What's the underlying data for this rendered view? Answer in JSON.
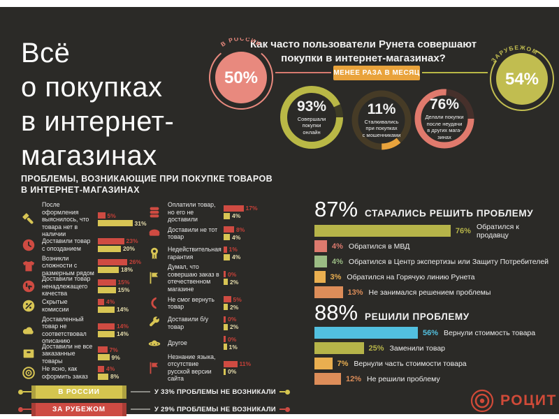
{
  "chart_data": [
    {
      "type": "pie",
      "title": "Как часто пользователи Рунета совершают покупки в интернет-магазинах?",
      "subtitle": "МЕНЕЕ РАЗА В МЕСЯЦ",
      "series": [
        {
          "label": "В РОССИИ",
          "value": 50,
          "color": "#e8897e"
        },
        {
          "label": "ЗАРУБЕЖОМ",
          "value": 54,
          "color": "#c1bd50"
        }
      ]
    },
    {
      "type": "pie",
      "items": [
        {
          "value": 93,
          "label": "Совершали покупки онлайн",
          "color": "#b9b846"
        },
        {
          "value": 11,
          "label": "Сталкивались при покупках с мошенниками",
          "color": "#e9a33c"
        },
        {
          "value": 76,
          "label": "Делали покупки после неудачи в других магазинах",
          "color": "#e07a6d"
        }
      ]
    },
    {
      "type": "bar",
      "title": "ПРОБЛЕМЫ, ВОЗНИКАЮЩИЕ ПРИ ПОКУПКЕ ТОВАРОВ В ИНТЕРНЕТ-МАГАЗИНАХ",
      "categories": [
        "После оформления выяснилось, что товара нет в наличии",
        "Доставили товар с опозданием",
        "Возникли сложности с размерным рядом",
        "Доставили товар ненадлежащего качества",
        "Скрытые комиссии",
        "Доставленный товар не соответствовал описанию",
        "Доставили не все заказанные товары",
        "Не ясно, как оформить заказ",
        "Оплатили товар, но его не доставили",
        "Доставили не тот товар",
        "Недействительная гарантия",
        "Думал, что совершаю заказ в отечественном магазине",
        "Не смог вернуть товар",
        "Доставили б/у товар",
        "Другое",
        "Незнание языка, отсутствие русской версии сайта"
      ],
      "series": [
        {
          "name": "ЗА РУБЕЖОМ",
          "color": "#cf4b42",
          "values": [
            5,
            23,
            26,
            15,
            4,
            14,
            7,
            4,
            17,
            8,
            1,
            0,
            5,
            0,
            0,
            11
          ]
        },
        {
          "name": "В РОССИИ",
          "color": "#d8c554",
          "values": [
            31,
            20,
            18,
            15,
            14,
            14,
            9,
            8,
            4,
            4,
            4,
            2,
            2,
            2,
            1,
            0
          ]
        }
      ]
    },
    {
      "type": "bar",
      "title": "87% СТАРАЛИСЬ РЕШИТЬ ПРОБЛЕМУ",
      "categories": [
        "Обратился к продавцу",
        "Обратился в МВД",
        "Обратился в Центр экспертизы или Защиту Потребителей",
        "Обратился на Горячую линию Рунета",
        "Не занимался решением проблемы"
      ],
      "values": [
        76,
        4,
        4,
        3,
        13
      ]
    },
    {
      "type": "bar",
      "title": "88% РЕШИЛИ ПРОБЛЕМУ",
      "categories": [
        "Вернули стоимость товара",
        "Заменили товар",
        "Вернули часть стоимости товара",
        "Не решили проблему"
      ],
      "values": [
        56,
        25,
        7,
        12
      ]
    },
    {
      "type": "table",
      "rows": [
        [
          "В РОССИИ",
          "У 33% ПРОБЛЕМЫ НЕ ВОЗНИКАЛИ"
        ],
        [
          "ЗА РУБЕЖОМ",
          "У 29% ПРОБЛЕМЫ НЕ ВОЗНИКАЛИ"
        ]
      ]
    }
  ],
  "page": {
    "title": "Всё\nо покупках\nв интернет-\nмагазинах"
  },
  "header": {
    "question": "Как часто пользователи Рунета совершают\nпокупки в интернет-магазинах?",
    "badge": "МЕНЕЕ РАЗА В МЕСЯЦ",
    "russia": {
      "label": "В РОССИИ",
      "value": "50%",
      "color": "#e8897e"
    },
    "abroad": {
      "label": "ЗАРУБЕЖОМ",
      "value": "54%",
      "color": "#c1bd50"
    },
    "donuts": [
      {
        "pct": 93,
        "value": "93%",
        "label": "Совершали\nпокупки\nонлайн",
        "color": "#b9b846",
        "rest": "#3e3c25"
      },
      {
        "pct": 11,
        "value": "11%",
        "label": "Сталкивались\nпри покупках\nс мошенниками",
        "color": "#e9a33c",
        "rest": "#463b26"
      },
      {
        "pct": 76,
        "value": "76%",
        "label": "Делали покупки\nпосле неудачи\nв других мага-\nзинах",
        "color": "#e07a6d",
        "rest": "#46302b"
      }
    ]
  },
  "problems": {
    "heading": "ПРОБЛЕМЫ, ВОЗНИКАЮЩИЕ ПРИ ПОКУПКЕ ТОВАРОВ\nВ ИНТЕРНЕТ-МАГАЗИНАХ",
    "left": [
      {
        "icon": "flashlight-icon",
        "label": "После оформления выяснилось, что товара нет в наличии",
        "abroad": 5,
        "russia": 31
      },
      {
        "icon": "clock-icon",
        "label": "Доставили товар с опозданием",
        "abroad": 23,
        "russia": 20
      },
      {
        "icon": "tshirt-icon",
        "label": "Возникли сложности с размерным рядом",
        "abroad": 26,
        "russia": 18
      },
      {
        "icon": "thumbs-down-icon",
        "label": "Доставили товар ненадлежащего качества",
        "abroad": 15,
        "russia": 15
      },
      {
        "icon": "commission-icon",
        "label": "Скрытые комиссии",
        "abroad": 4,
        "russia": 14
      },
      {
        "icon": "cloud-icon",
        "label": "Доставленный товар не соответствовал описанию",
        "abroad": 14,
        "russia": 14
      },
      {
        "icon": "box-icon",
        "label": "Доставили не все заказанные товары",
        "abroad": 7,
        "russia": 9
      },
      {
        "icon": "target-icon",
        "label": "Не ясно, как оформить заказ",
        "abroad": 4,
        "russia": 8
      }
    ],
    "right": [
      {
        "icon": "coins-icon",
        "label": "Оплатили товар, но его не доставили",
        "abroad": 17,
        "russia": 4
      },
      {
        "icon": "cap-icon",
        "label": "Доставили не тот товар",
        "abroad": 8,
        "russia": 4
      },
      {
        "icon": "award-icon",
        "label": "Недействительная гарантия",
        "abroad": 1,
        "russia": 4
      },
      {
        "icon": "flag-icon",
        "label": "Думал, что совершаю заказ в отечественном магазине",
        "abroad": 0,
        "russia": 2
      },
      {
        "icon": "boomerang-icon",
        "label": "Не смог вернуть товар",
        "abroad": 5,
        "russia": 2
      },
      {
        "icon": "wrench-icon",
        "label": "Доставили б/у товар",
        "abroad": 0,
        "russia": 2
      },
      {
        "icon": "ufo-icon",
        "label": "Другое",
        "abroad": 0,
        "russia": 1
      },
      {
        "icon": "flag-icon",
        "label": "Незнание языка, отсутствие русской версии сайта",
        "abroad": 11,
        "russia": 0
      }
    ]
  },
  "solve": {
    "pct": "87%",
    "heading": "СТАРАЛИСЬ РЕШИТЬ ПРОБЛЕМУ",
    "bars": [
      {
        "v": 76,
        "label": "Обратился к продавцу",
        "color": "#b6b449"
      },
      {
        "v": 4,
        "label": "Обратился в МВД",
        "color": "#dd7a6e"
      },
      {
        "v": 4,
        "label": "Обратился в Центр экспертизы или Защиту Потребителей",
        "color": "#9bbc84"
      },
      {
        "v": 3,
        "label": "Обратился на Горячую линию Рунета",
        "color": "#eaaf50"
      },
      {
        "v": 13,
        "label": "Не занимался решением проблемы",
        "color": "#dd8d59"
      }
    ]
  },
  "solved": {
    "pct": "88%",
    "heading": "РЕШИЛИ ПРОБЛЕМУ",
    "bars": [
      {
        "v": 56,
        "label": "Вернули стоимость товара",
        "color": "#52c0df"
      },
      {
        "v": 25,
        "label": "Заменили товар",
        "color": "#b6b449"
      },
      {
        "v": 7,
        "label": "Вернули часть стоимости товара",
        "color": "#eaaf50"
      },
      {
        "v": 12,
        "label": "Не решили проблему",
        "color": "#dd8d59"
      }
    ]
  },
  "legend": {
    "rows": [
      {
        "banner": "В РОССИИ",
        "note": "У 33% ПРОБЛЕМЫ НЕ ВОЗНИКАЛИ",
        "color": "#d5c54f"
      },
      {
        "banner": "ЗА РУБЕЖОМ",
        "note": "У 29% ПРОБЛЕМЫ НЕ ВОЗНИКАЛИ",
        "color": "#cd4b43"
      }
    ]
  },
  "logo": {
    "text": "РОЦИТ",
    "color": "#d04a38"
  }
}
